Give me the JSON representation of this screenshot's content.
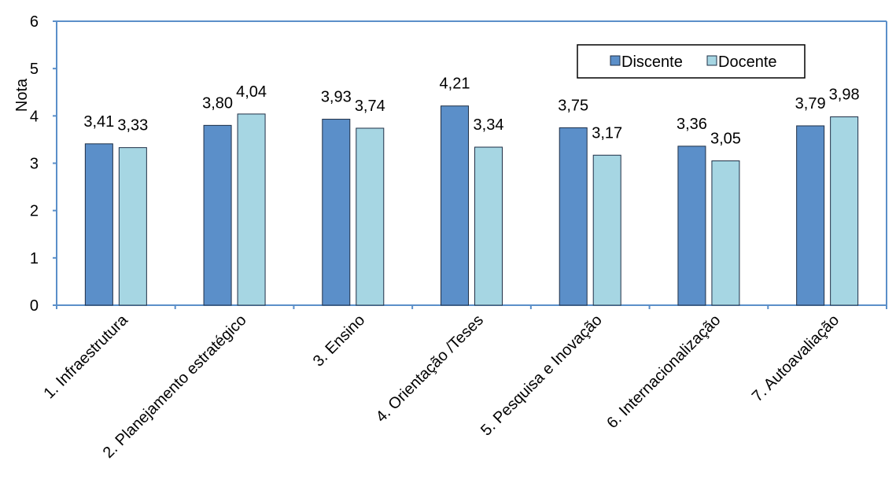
{
  "chart_data": {
    "type": "bar",
    "title": "",
    "xlabel": "",
    "ylabel": "Nota",
    "ylim": [
      0,
      6
    ],
    "yticks": [
      0,
      1,
      2,
      3,
      4,
      5,
      6
    ],
    "grid": false,
    "legend_position": "top-right",
    "categories": [
      "1. Infraestrutura",
      "2. Planejamento estratégico",
      "3. Ensino",
      "4. Orientação /Teses",
      "5. Pesquisa e Inovação",
      "6. Internacionalização",
      "7. Autoavaliação"
    ],
    "series": [
      {
        "name": "Discente",
        "color": "#5b8fc9",
        "values": [
          3.41,
          3.8,
          3.93,
          4.21,
          3.75,
          3.36,
          3.79
        ],
        "labels": [
          "3,41",
          "3,80",
          "3,93",
          "4,21",
          "3,75",
          "3,36",
          "3,79"
        ]
      },
      {
        "name": "Docente",
        "color": "#a6d6e3",
        "values": [
          3.33,
          4.04,
          3.74,
          3.34,
          3.17,
          3.05,
          3.98
        ],
        "labels": [
          "3,33",
          "4,04",
          "3,74",
          "3,34",
          "3,17",
          "3,05",
          "3,98"
        ]
      }
    ],
    "axis_color": "#5b8fc9",
    "bar_edge_color": "#1f2f46"
  }
}
